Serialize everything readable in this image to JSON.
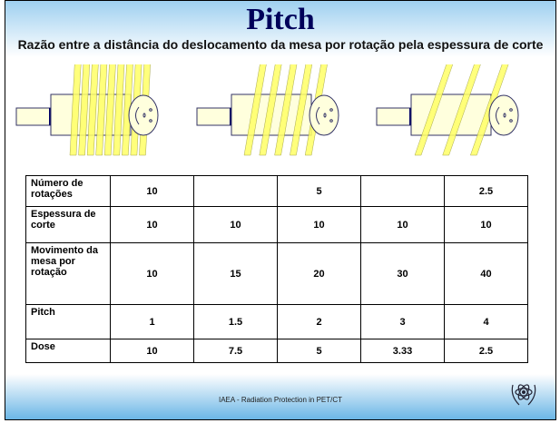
{
  "title": "Pitch",
  "subtitle": "Razão entre a distância do deslocamento da mesa por rotação pela espessura de corte",
  "diagrams": [
    {
      "turns": 9
    },
    {
      "turns": 5
    },
    {
      "turns": 3
    }
  ],
  "colors": {
    "title": "#00005a",
    "stripe": "#ffff66",
    "body": "#ffffdd",
    "outline": "#333366"
  },
  "table": {
    "rows": [
      {
        "label": "Número de rotações",
        "values": [
          "10",
          "",
          "5",
          "",
          "2.5"
        ]
      },
      {
        "label": "Espessura de corte",
        "values": [
          "10",
          "10",
          "10",
          "10",
          "10"
        ]
      },
      {
        "label": "Movimento da mesa por rotação",
        "values": [
          "10",
          "15",
          "20",
          "30",
          "40"
        ]
      },
      {
        "label": "Pitch",
        "values": [
          "1",
          "1.5",
          "2",
          "3",
          "4"
        ]
      },
      {
        "label": "Dose",
        "values": [
          "10",
          "7.5",
          "5",
          "3.33",
          "2.5"
        ]
      }
    ]
  },
  "footer": "IAEA - Radiation Protection in PET/CT",
  "logo_icon": "iaea-atom-logo-icon"
}
